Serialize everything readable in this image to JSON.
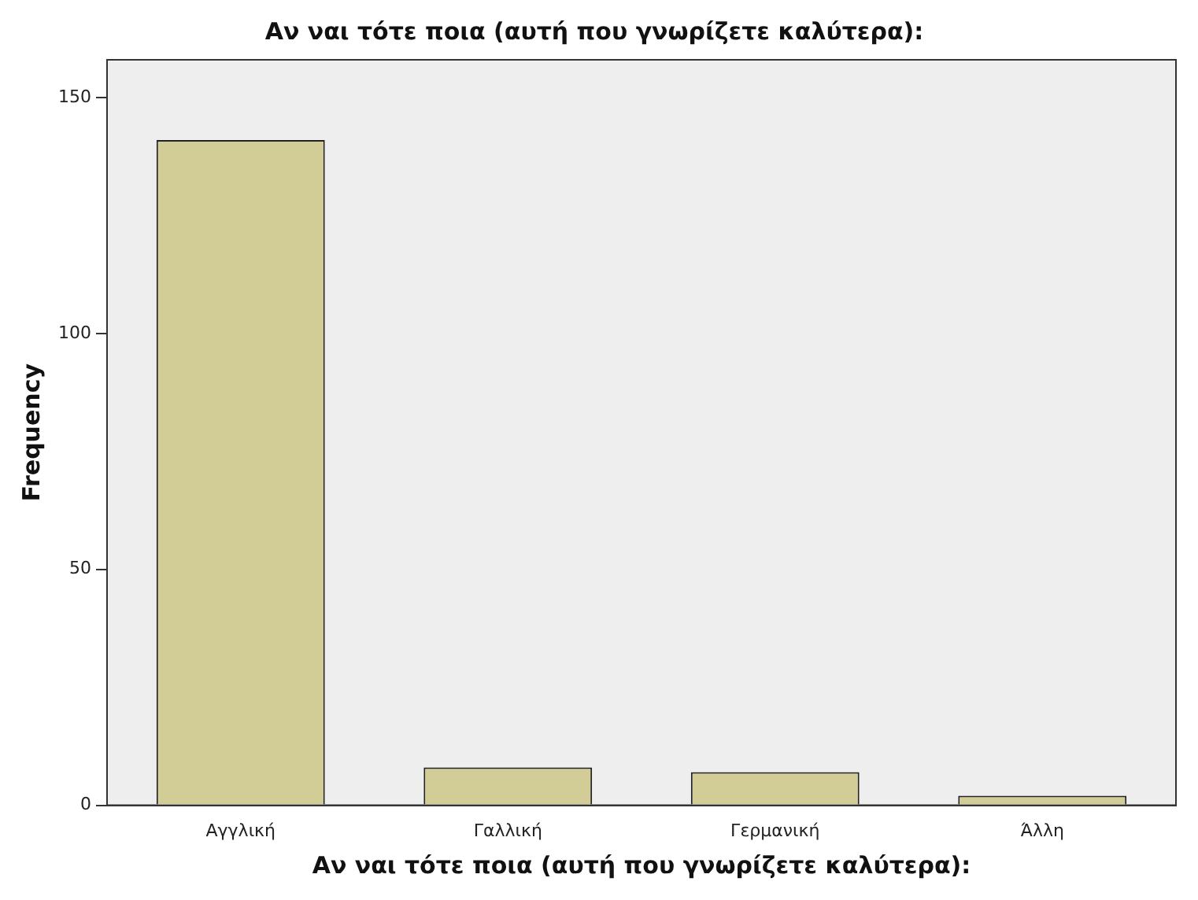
{
  "chart_data": {
    "type": "bar",
    "title": "Αν ναι τότε ποια (αυτή που γνωρίζετε καλύτερα):",
    "xlabel": "Αν ναι τότε ποια (αυτή που γνωρίζετε καλύτερα):",
    "ylabel": "Frequency",
    "categories": [
      "Αγγλική",
      "Γαλλική",
      "Γερμανική",
      "Άλλη"
    ],
    "values": [
      141,
      8,
      7,
      2
    ],
    "color": "#d2cd96",
    "ylim": [
      0,
      158
    ],
    "yticks": [
      0,
      50,
      100,
      150
    ],
    "grid": false,
    "legend": false
  }
}
